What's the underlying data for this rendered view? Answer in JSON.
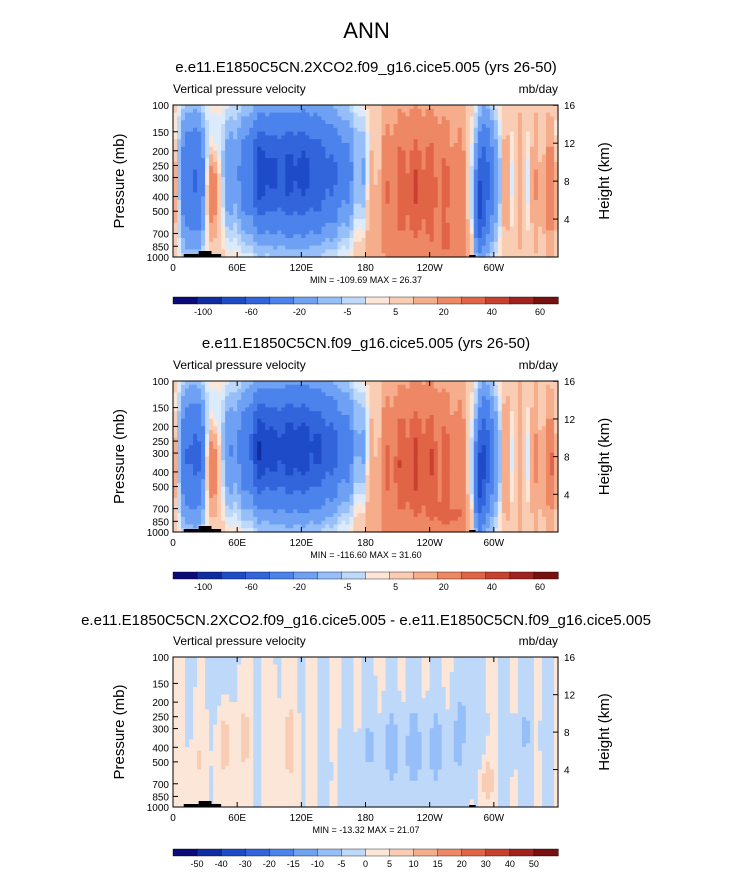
{
  "title": "ANN",
  "colors": {
    "land": "#000000",
    "frame": "#000000",
    "palette": [
      "#0a0a78",
      "#0f2da0",
      "#1e4bc8",
      "#3264dc",
      "#4b82ec",
      "#6ea0f4",
      "#96bef8",
      "#bed8fa",
      "#dcebfc",
      "#fbe6d8",
      "#f9cdb4",
      "#f5ad8c",
      "#ee8764",
      "#e26446",
      "#c8412e",
      "#a0231e",
      "#78100f"
    ]
  },
  "chart_data": [
    {
      "type": "heatmap",
      "title": "e.e11.E1850C5CN.2XCO2.f09_g16.cice5.005 (yrs 26-50)",
      "variable": "Vertical pressure velocity",
      "units": "mb/day",
      "ylabel": "Pressure (mb)",
      "ylabel_right": "Height (km)",
      "x_ticks": [
        "0",
        "60E",
        "120E",
        "180",
        "120W",
        "60W"
      ],
      "y_ticks": [
        "100",
        "150",
        "200",
        "250",
        "300",
        "400",
        "500",
        "700",
        "850",
        "1000"
      ],
      "y_ticks_right": [
        "16",
        "12",
        "8",
        "4"
      ],
      "xlim": [
        0,
        360
      ],
      "ylim": [
        1000,
        100
      ],
      "stats": "MIN = -109.69  MAX =  26.37",
      "colorbar_labels": [
        "-100",
        "-60",
        "-20",
        "-5",
        "5",
        "20",
        "40",
        "60"
      ],
      "scale": 1.0,
      "diverging": false
    },
    {
      "type": "heatmap",
      "title": "e.e11.E1850C5CN.f09_g16.cice5.005 (yrs 26-50)",
      "variable": "Vertical pressure velocity",
      "units": "mb/day",
      "ylabel": "Pressure (mb)",
      "ylabel_right": "Height (km)",
      "x_ticks": [
        "0",
        "60E",
        "120E",
        "180",
        "120W",
        "60W"
      ],
      "y_ticks": [
        "100",
        "150",
        "200",
        "250",
        "300",
        "400",
        "500",
        "700",
        "850",
        "1000"
      ],
      "y_ticks_right": [
        "16",
        "12",
        "8",
        "4"
      ],
      "xlim": [
        0,
        360
      ],
      "ylim": [
        1000,
        100
      ],
      "stats": "MIN = -116.60  MAX =  31.60",
      "colorbar_labels": [
        "-100",
        "-60",
        "-20",
        "-5",
        "5",
        "20",
        "40",
        "60"
      ],
      "scale": 1.08,
      "diverging": false
    },
    {
      "type": "heatmap",
      "title": "e.e11.E1850C5CN.2XCO2.f09_g16.cice5.005 - e.e11.E1850C5CN.f09_g16.cice5.005",
      "variable": "Vertical pressure velocity",
      "units": "mb/day",
      "ylabel": "Pressure (mb)",
      "ylabel_right": "Height (km)",
      "x_ticks": [
        "0",
        "60E",
        "120E",
        "180",
        "120W",
        "60W"
      ],
      "y_ticks": [
        "100",
        "150",
        "200",
        "250",
        "300",
        "400",
        "500",
        "700",
        "850",
        "1000"
      ],
      "y_ticks_right": [
        "16",
        "12",
        "8",
        "4"
      ],
      "xlim": [
        0,
        360
      ],
      "ylim": [
        1000,
        100
      ],
      "stats": "MIN = -13.32  MAX =  21.07",
      "colorbar_labels": [
        "-50",
        "-40",
        "-30",
        "-20",
        "-15",
        "-10",
        "-5",
        "0",
        "5",
        "10",
        "15",
        "20",
        "30",
        "40",
        "50"
      ],
      "scale": 1.0,
      "diverging": true
    }
  ]
}
